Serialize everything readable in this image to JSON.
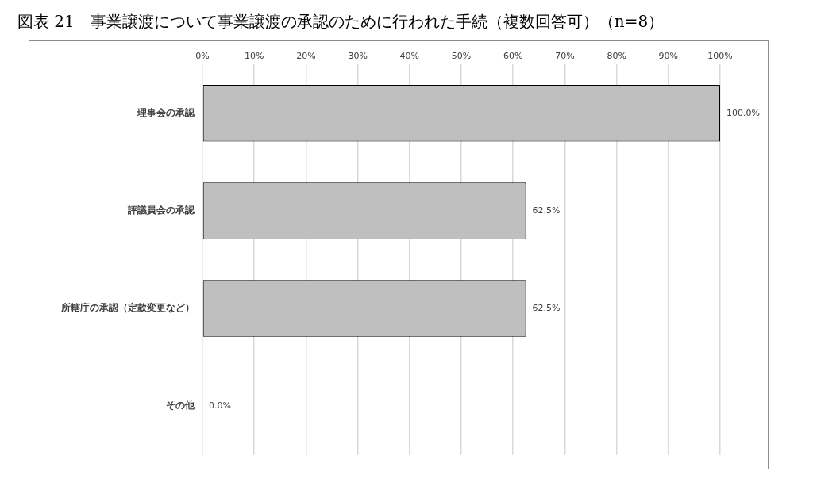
{
  "chart_data": {
    "type": "bar",
    "orientation": "horizontal",
    "title": "図表 21　事業譲渡について事業譲渡の承認のために行われた手続（複数回答可）（n=8）",
    "categories": [
      "理事会の承認",
      "評議員会の承認",
      "所轄庁の承認（定款変更など）",
      "その他"
    ],
    "values": [
      100,
      62.5,
      62.5,
      0
    ],
    "value_labels": [
      "100.0%",
      "62.5%",
      "62.5%",
      "0.0%"
    ],
    "color": "#bfbfbf",
    "xlim": [
      0,
      100
    ],
    "xticks": [
      {
        "value": 0,
        "label": "0%"
      },
      {
        "value": 10,
        "label": "10%"
      },
      {
        "value": 20,
        "label": "20%"
      },
      {
        "value": 30,
        "label": "30%"
      },
      {
        "value": 40,
        "label": "40%"
      },
      {
        "value": 50,
        "label": "50%"
      },
      {
        "value": 60,
        "label": "60%"
      },
      {
        "value": 70,
        "label": "70%"
      },
      {
        "value": 80,
        "label": "80%"
      },
      {
        "value": 90,
        "label": "90%"
      },
      {
        "value": 100,
        "label": "100%"
      }
    ],
    "grid": "x"
  }
}
